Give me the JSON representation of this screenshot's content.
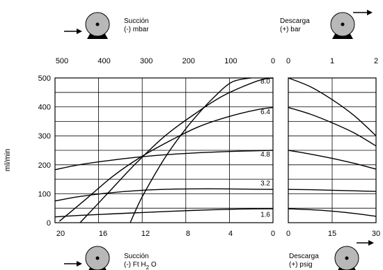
{
  "headers": {
    "suction_mbar": {
      "line1": "Succión",
      "line2": "(-) mbar"
    },
    "discharge_bar": {
      "line1": "Descarga",
      "line2": "(+) bar"
    },
    "suction_ft": {
      "line1": "Succión",
      "line2_a": "(-) Ft H",
      "line2_sub": "2",
      "line2_b": " O"
    },
    "discharge_psig": {
      "line1": "Descarga",
      "line2": "(+) psig"
    }
  },
  "chart_data": {
    "type": "line",
    "ylabel": "ml/min",
    "ylim": [
      0,
      500
    ],
    "y_ticks": [
      "0",
      "100",
      "200",
      "300",
      "400",
      "500"
    ],
    "suction_panel": {
      "top_axis": {
        "unit": "mbar",
        "range": [
          500,
          0
        ],
        "ticks": [
          "500",
          "400",
          "300",
          "200",
          "100",
          "0"
        ]
      },
      "bottom_axis": {
        "unit": "Ft H2O",
        "range": [
          20,
          0
        ],
        "ticks": [
          "20",
          "16",
          "12",
          "8",
          "4",
          "0"
        ]
      }
    },
    "discharge_panel": {
      "top_axis": {
        "unit": "bar",
        "range": [
          0,
          2
        ],
        "ticks": [
          "0",
          "1",
          "2"
        ]
      },
      "bottom_axis": {
        "unit": "psig",
        "range": [
          0,
          30
        ],
        "ticks": [
          "0",
          "15",
          "30"
        ]
      }
    },
    "series": [
      {
        "label": "8.0",
        "suction": [
          [
            -17.7,
            0
          ],
          [
            -15.2,
            100
          ],
          [
            -12.7,
            200
          ],
          [
            -9.9,
            300
          ],
          [
            -7.2,
            375
          ],
          [
            -4.5,
            440
          ],
          [
            -1.4,
            490
          ],
          [
            0,
            500
          ]
        ],
        "discharge": [
          [
            0,
            500
          ],
          [
            7.5,
            470
          ],
          [
            15,
            425
          ],
          [
            22.5,
            370
          ],
          [
            30,
            300
          ]
        ]
      },
      {
        "label": "6.4",
        "suction": [
          [
            -19.6,
            5
          ],
          [
            -17.2,
            80
          ],
          [
            -14.7,
            160
          ],
          [
            -12.2,
            225
          ],
          [
            -9.6,
            280
          ],
          [
            -6.9,
            330
          ],
          [
            -4.2,
            365
          ],
          [
            -1.5,
            390
          ],
          [
            0,
            398
          ]
        ],
        "discharge": [
          [
            0,
            398
          ],
          [
            7.5,
            375
          ],
          [
            15,
            345
          ],
          [
            22.5,
            310
          ],
          [
            30,
            265
          ]
        ]
      },
      {
        "label": "4.8",
        "suction": [
          [
            -20,
            183
          ],
          [
            -17.8,
            200
          ],
          [
            -15,
            215
          ],
          [
            -12,
            228
          ],
          [
            -9,
            237
          ],
          [
            -6,
            243
          ],
          [
            -3,
            247
          ],
          [
            0,
            250
          ]
        ],
        "discharge": [
          [
            0,
            250
          ],
          [
            7.5,
            237
          ],
          [
            15,
            222
          ],
          [
            22.5,
            205
          ],
          [
            30,
            185
          ]
        ]
      },
      {
        "label": "3.2",
        "suction": [
          [
            -20,
            75
          ],
          [
            -17.8,
            90
          ],
          [
            -15,
            103
          ],
          [
            -12,
            112
          ],
          [
            -9,
            116
          ],
          [
            -6,
            117
          ],
          [
            -3,
            116
          ],
          [
            0,
            115
          ]
        ],
        "discharge": [
          [
            0,
            115
          ],
          [
            7.5,
            114
          ],
          [
            15,
            112
          ],
          [
            22.5,
            110
          ],
          [
            30,
            108
          ]
        ]
      },
      {
        "label": "1.6",
        "suction": [
          [
            -20,
            20
          ],
          [
            -17.8,
            25
          ],
          [
            -15,
            30
          ],
          [
            -12,
            35
          ],
          [
            -9,
            40
          ],
          [
            -6,
            44
          ],
          [
            -3,
            47
          ],
          [
            0,
            48
          ]
        ],
        "discharge": [
          [
            0,
            48
          ],
          [
            7.5,
            45
          ],
          [
            15,
            40
          ],
          [
            22.5,
            32
          ],
          [
            30,
            22
          ]
        ]
      },
      {
        "label": "",
        "suction": [
          [
            -13.1,
            0
          ],
          [
            -12.2,
            75
          ],
          [
            -11.1,
            150
          ],
          [
            -9.9,
            225
          ],
          [
            -8.5,
            300
          ],
          [
            -7.0,
            370
          ],
          [
            -5.5,
            430
          ],
          [
            -3.8,
            485
          ],
          [
            -2.0,
            500
          ]
        ],
        "discharge": []
      }
    ],
    "curve_labels": [
      {
        "text": "8.0",
        "y": 490
      },
      {
        "text": "6.4",
        "y": 385
      },
      {
        "text": "4.8",
        "y": 238
      },
      {
        "text": "3.2",
        "y": 138
      },
      {
        "text": "1.6",
        "y": 30
      }
    ]
  }
}
